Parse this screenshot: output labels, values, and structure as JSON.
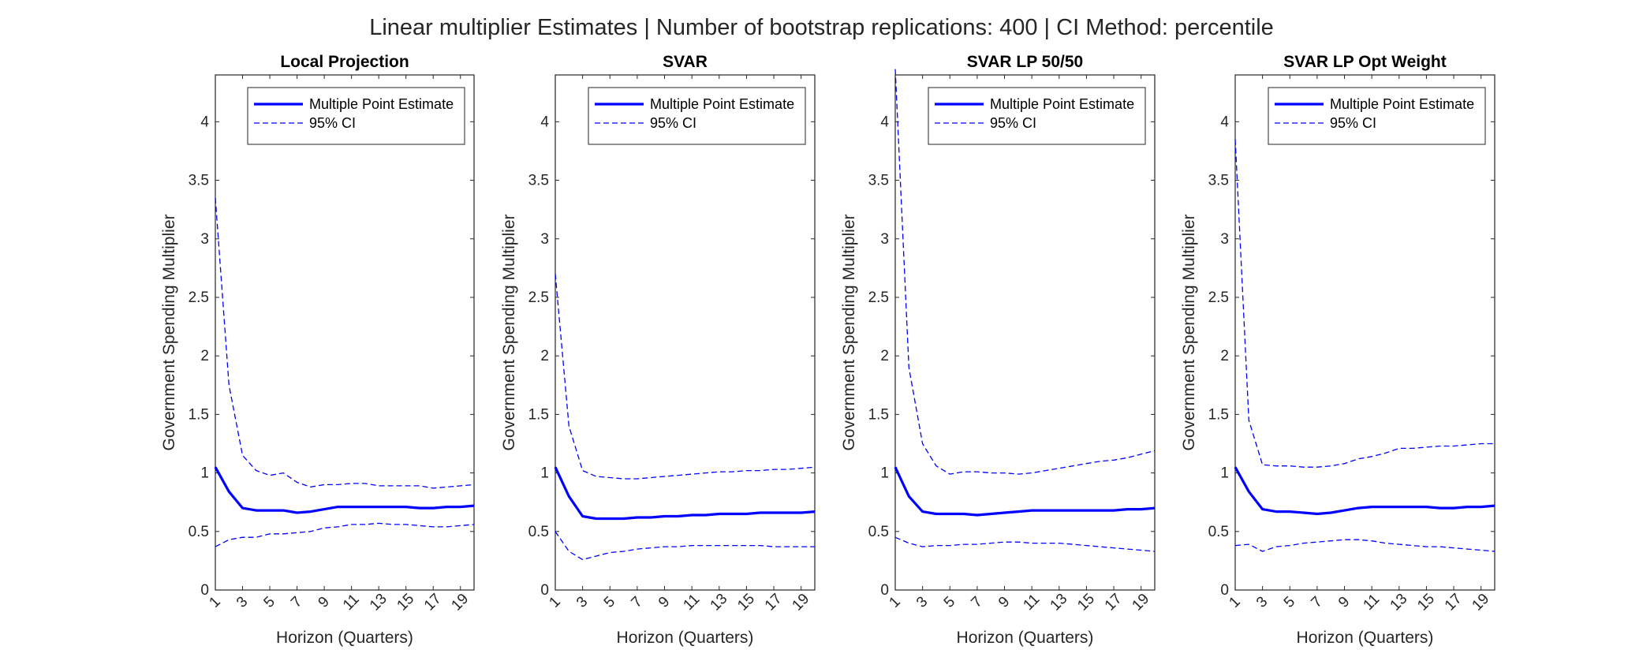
{
  "title": "Linear multiplier Estimates | Number of bootstrap replications: 400 | CI Method: percentile",
  "chart_data": [
    {
      "type": "line",
      "title": "Local Projection",
      "xlabel": "Horizon (Quarters)",
      "ylabel": "Government Spending Multiplier",
      "xlim": [
        1,
        20
      ],
      "ylim": [
        0,
        4.4
      ],
      "xticks": [
        1,
        3,
        5,
        7,
        9,
        11,
        13,
        15,
        17,
        19
      ],
      "yticks": [
        0,
        0.5,
        1,
        1.5,
        2,
        2.5,
        3,
        3.5,
        4
      ],
      "legend": "top-right",
      "x": [
        1,
        2,
        3,
        4,
        5,
        6,
        7,
        8,
        9,
        10,
        11,
        12,
        13,
        14,
        15,
        16,
        17,
        18,
        19,
        20
      ],
      "series": [
        {
          "name": "Multiple Point Estimate",
          "style": "solid",
          "color": "#0000ff",
          "values": [
            1.05,
            0.84,
            0.7,
            0.68,
            0.68,
            0.68,
            0.66,
            0.67,
            0.69,
            0.71,
            0.71,
            0.71,
            0.71,
            0.71,
            0.71,
            0.7,
            0.7,
            0.71,
            0.71,
            0.72
          ]
        },
        {
          "name": "95% CI",
          "style": "dashed",
          "color": "#0000ff",
          "values": [
            3.35,
            1.75,
            1.15,
            1.02,
            0.98,
            1.0,
            0.92,
            0.88,
            0.9,
            0.9,
            0.91,
            0.91,
            0.89,
            0.89,
            0.89,
            0.89,
            0.87,
            0.88,
            0.89,
            0.9
          ]
        },
        {
          "name": "",
          "style": "dashed",
          "color": "#0000ff",
          "values": [
            0.37,
            0.43,
            0.45,
            0.45,
            0.48,
            0.48,
            0.49,
            0.5,
            0.53,
            0.54,
            0.56,
            0.56,
            0.57,
            0.56,
            0.56,
            0.55,
            0.54,
            0.54,
            0.55,
            0.56
          ]
        }
      ]
    },
    {
      "type": "line",
      "title": "SVAR",
      "xlabel": "Horizon (Quarters)",
      "ylabel": "Government Spending Multiplier",
      "xlim": [
        1,
        20
      ],
      "ylim": [
        0,
        4.4
      ],
      "xticks": [
        1,
        3,
        5,
        7,
        9,
        11,
        13,
        15,
        17,
        19
      ],
      "yticks": [
        0,
        0.5,
        1,
        1.5,
        2,
        2.5,
        3,
        3.5,
        4
      ],
      "legend": "top-right",
      "x": [
        1,
        2,
        3,
        4,
        5,
        6,
        7,
        8,
        9,
        10,
        11,
        12,
        13,
        14,
        15,
        16,
        17,
        18,
        19,
        20
      ],
      "series": [
        {
          "name": "Multiple Point Estimate",
          "style": "solid",
          "color": "#0000ff",
          "values": [
            1.05,
            0.8,
            0.63,
            0.61,
            0.61,
            0.61,
            0.62,
            0.62,
            0.63,
            0.63,
            0.64,
            0.64,
            0.65,
            0.65,
            0.65,
            0.66,
            0.66,
            0.66,
            0.66,
            0.67
          ]
        },
        {
          "name": "95% CI",
          "style": "dashed",
          "color": "#0000ff",
          "values": [
            2.7,
            1.4,
            1.02,
            0.97,
            0.96,
            0.95,
            0.95,
            0.96,
            0.97,
            0.98,
            0.99,
            1.0,
            1.01,
            1.01,
            1.02,
            1.02,
            1.03,
            1.03,
            1.04,
            1.05
          ]
        },
        {
          "name": "",
          "style": "dashed",
          "color": "#0000ff",
          "values": [
            0.5,
            0.33,
            0.26,
            0.29,
            0.32,
            0.33,
            0.35,
            0.36,
            0.37,
            0.37,
            0.38,
            0.38,
            0.38,
            0.38,
            0.38,
            0.38,
            0.37,
            0.37,
            0.37,
            0.37
          ]
        }
      ]
    },
    {
      "type": "line",
      "title": "SVAR LP 50/50",
      "xlabel": "Horizon (Quarters)",
      "ylabel": "Government Spending Multiplier",
      "xlim": [
        1,
        20
      ],
      "ylim": [
        0,
        4.4
      ],
      "xticks": [
        1,
        3,
        5,
        7,
        9,
        11,
        13,
        15,
        17,
        19
      ],
      "yticks": [
        0,
        0.5,
        1,
        1.5,
        2,
        2.5,
        3,
        3.5,
        4
      ],
      "legend": "top-right",
      "x": [
        1,
        2,
        3,
        4,
        5,
        6,
        7,
        8,
        9,
        10,
        11,
        12,
        13,
        14,
        15,
        16,
        17,
        18,
        19,
        20
      ],
      "series": [
        {
          "name": "Multiple Point Estimate",
          "style": "solid",
          "color": "#0000ff",
          "values": [
            1.05,
            0.8,
            0.67,
            0.65,
            0.65,
            0.65,
            0.64,
            0.65,
            0.66,
            0.67,
            0.68,
            0.68,
            0.68,
            0.68,
            0.68,
            0.68,
            0.68,
            0.69,
            0.69,
            0.7
          ]
        },
        {
          "name": "95% CI",
          "style": "dashed",
          "color": "#0000ff",
          "values": [
            4.45,
            1.9,
            1.25,
            1.06,
            0.99,
            1.01,
            1.01,
            1.0,
            1.0,
            0.99,
            1.0,
            1.02,
            1.04,
            1.06,
            1.08,
            1.1,
            1.11,
            1.13,
            1.16,
            1.19
          ]
        },
        {
          "name": "",
          "style": "dashed",
          "color": "#0000ff",
          "values": [
            0.45,
            0.4,
            0.37,
            0.38,
            0.38,
            0.39,
            0.39,
            0.4,
            0.41,
            0.41,
            0.4,
            0.4,
            0.4,
            0.39,
            0.38,
            0.37,
            0.36,
            0.35,
            0.34,
            0.33
          ]
        }
      ]
    },
    {
      "type": "line",
      "title": "SVAR LP Opt Weight",
      "xlabel": "Horizon (Quarters)",
      "ylabel": "Government Spending Multiplier",
      "xlim": [
        1,
        20
      ],
      "ylim": [
        0,
        4.4
      ],
      "xticks": [
        1,
        3,
        5,
        7,
        9,
        11,
        13,
        15,
        17,
        19
      ],
      "yticks": [
        0,
        0.5,
        1,
        1.5,
        2,
        2.5,
        3,
        3.5,
        4
      ],
      "legend": "top-right",
      "x": [
        1,
        2,
        3,
        4,
        5,
        6,
        7,
        8,
        9,
        10,
        11,
        12,
        13,
        14,
        15,
        16,
        17,
        18,
        19,
        20
      ],
      "series": [
        {
          "name": "Multiple Point Estimate",
          "style": "solid",
          "color": "#0000ff",
          "values": [
            1.05,
            0.84,
            0.69,
            0.67,
            0.67,
            0.66,
            0.65,
            0.66,
            0.68,
            0.7,
            0.71,
            0.71,
            0.71,
            0.71,
            0.71,
            0.7,
            0.7,
            0.71,
            0.71,
            0.72
          ]
        },
        {
          "name": "95% CI",
          "style": "dashed",
          "color": "#0000ff",
          "values": [
            3.85,
            1.45,
            1.07,
            1.06,
            1.06,
            1.05,
            1.05,
            1.06,
            1.08,
            1.12,
            1.14,
            1.17,
            1.21,
            1.21,
            1.22,
            1.23,
            1.23,
            1.24,
            1.25,
            1.25
          ]
        },
        {
          "name": "",
          "style": "dashed",
          "color": "#0000ff",
          "values": [
            0.38,
            0.39,
            0.33,
            0.37,
            0.38,
            0.4,
            0.41,
            0.42,
            0.43,
            0.43,
            0.42,
            0.4,
            0.39,
            0.38,
            0.37,
            0.37,
            0.36,
            0.35,
            0.34,
            0.33
          ]
        }
      ]
    }
  ]
}
